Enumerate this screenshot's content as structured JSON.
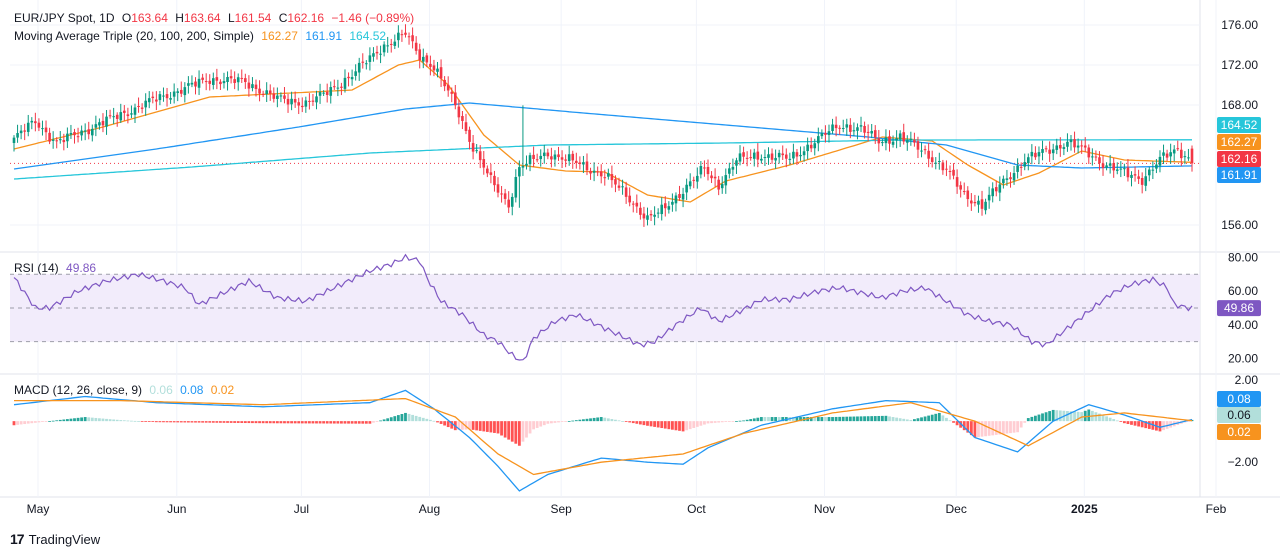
{
  "header": {
    "symbol": "EUR/JPY Spot, 1D",
    "o_label": "O",
    "o": "163.64",
    "h_label": "H",
    "h": "163.64",
    "l_label": "L",
    "l": "161.54",
    "c_label": "C",
    "c": "162.16",
    "change": "−1.46 (−0.89%)"
  },
  "ma_legend": {
    "label": "Moving Average Triple (20, 100, 200, Simple)",
    "ma20": "162.27",
    "ma100": "161.91",
    "ma200": "164.52"
  },
  "rsi_legend": {
    "label": "RSI (14)",
    "value": "49.86"
  },
  "macd_legend": {
    "label": "MACD (12, 26, close, 9)",
    "hist": "0.06",
    "macd": "0.08",
    "signal": "0.02"
  },
  "colors": {
    "up": "#089981",
    "down": "#f23645",
    "ma20": "#f7931e",
    "ma100": "#2196f3",
    "ma200": "#26c6da",
    "rsi": "#7e57c2",
    "rsi_band": "#f2ecfb",
    "macd": "#2196f3",
    "signal": "#f7931e",
    "hist_up_strong": "#26a69a",
    "hist_up_weak": "#b2dfdb",
    "hist_down_strong": "#ff5252",
    "hist_down_weak": "#ffcdd2",
    "grid": "#f0f3fa",
    "text": "#131722"
  },
  "x_axis": {
    "ticks": [
      "May",
      "Jun",
      "Jul",
      "Aug",
      "Sep",
      "Oct",
      "Nov",
      "Dec",
      "2025",
      "Feb"
    ]
  },
  "price_axis": {
    "ticks": [
      "176.00",
      "172.00",
      "168.00",
      "156.00"
    ]
  },
  "rsi_axis": {
    "ticks": [
      "80.00",
      "60.00",
      "40.00",
      "20.00"
    ]
  },
  "macd_axis": {
    "ticks": [
      "2.00",
      "−2.00"
    ]
  },
  "price_labels": [
    {
      "text": "164.52",
      "color": "#26c6da"
    },
    {
      "text": "162.27",
      "color": "#f7931e"
    },
    {
      "text": "162.16",
      "color": "#f23645"
    },
    {
      "text": "161.91",
      "color": "#2196f3"
    }
  ],
  "rsi_label": {
    "text": "49.86",
    "color": "#7e57c2"
  },
  "macd_labels": [
    {
      "text": "0.08",
      "color": "#2196f3"
    },
    {
      "text": "0.06",
      "color": "#b2dfdb"
    },
    {
      "text": "0.02",
      "color": "#f7931e"
    }
  ],
  "brand": {
    "name": "TradingView",
    "logo": "17"
  },
  "chart_data": [
    {
      "type": "candlestick",
      "title": "EUR/JPY Spot, 1D",
      "ylim": [
        153.5,
        177.5
      ],
      "x_ticks": [
        "May",
        "Jun",
        "Jul",
        "Aug",
        "Sep",
        "Oct",
        "Nov",
        "Dec",
        "2025",
        "Feb"
      ],
      "last_close": 162.16,
      "close_path": [
        [
          0,
          164.6
        ],
        [
          6,
          166.4
        ],
        [
          12,
          164.2
        ],
        [
          22,
          165.8
        ],
        [
          40,
          168.6
        ],
        [
          55,
          170.6
        ],
        [
          65,
          170.3
        ],
        [
          74,
          168.6
        ],
        [
          82,
          168.2
        ],
        [
          86,
          168.8
        ],
        [
          95,
          171.0
        ],
        [
          103,
          173.7
        ],
        [
          110,
          175.1
        ],
        [
          114,
          173.0
        ],
        [
          118,
          171.8
        ],
        [
          124,
          168.0
        ],
        [
          129,
          163.8
        ],
        [
          134,
          160.4
        ],
        [
          139,
          158.1
        ],
        [
          142,
          161.8
        ],
        [
          150,
          163.2
        ],
        [
          158,
          162.2
        ],
        [
          166,
          161.0
        ],
        [
          172,
          159.0
        ],
        [
          178,
          156.6
        ],
        [
          182,
          157.4
        ],
        [
          188,
          159.5
        ],
        [
          194,
          161.6
        ],
        [
          198,
          160.0
        ],
        [
          203,
          162.5
        ],
        [
          210,
          163.0
        ],
        [
          218,
          162.6
        ],
        [
          226,
          164.6
        ],
        [
          232,
          166.0
        ],
        [
          238,
          165.6
        ],
        [
          243,
          164.4
        ],
        [
          249,
          164.8
        ],
        [
          256,
          163.3
        ],
        [
          262,
          161.5
        ],
        [
          267,
          159.0
        ],
        [
          272,
          158.0
        ],
        [
          278,
          160.3
        ],
        [
          284,
          162.5
        ],
        [
          290,
          163.4
        ],
        [
          296,
          164.3
        ],
        [
          300,
          163.6
        ],
        [
          306,
          162.2
        ],
        [
          311,
          161.3
        ],
        [
          317,
          160.6
        ],
        [
          322,
          162.5
        ],
        [
          327,
          163.6
        ],
        [
          331,
          162.4
        ]
      ],
      "ma_series": [
        {
          "name": "MA 20",
          "path": [
            [
              0,
              163.6
            ],
            [
              25,
              165.8
            ],
            [
              55,
              168.8
            ],
            [
              95,
              169.5
            ],
            [
              108,
              172.0
            ],
            [
              114,
              172.5
            ],
            [
              122,
              170.0
            ],
            [
              132,
              165.0
            ],
            [
              142,
              162.0
            ],
            [
              155,
              161.4
            ],
            [
              166,
              161.3
            ],
            [
              178,
              159.0
            ],
            [
              190,
              158.3
            ],
            [
              200,
              160.4
            ],
            [
              218,
              162.0
            ],
            [
              232,
              163.5
            ],
            [
              244,
              164.8
            ],
            [
              258,
              164.4
            ],
            [
              268,
              162.0
            ],
            [
              278,
              160.0
            ],
            [
              288,
              161.2
            ],
            [
              300,
              163.4
            ],
            [
              312,
              162.5
            ],
            [
              331,
              162.27
            ]
          ]
        },
        {
          "name": "MA 100",
          "path": [
            [
              0,
              161.6
            ],
            [
              40,
              163.6
            ],
            [
              80,
              165.8
            ],
            [
              110,
              167.6
            ],
            [
              128,
              168.2
            ],
            [
              160,
              167.2
            ],
            [
              200,
              166.0
            ],
            [
              240,
              164.8
            ],
            [
              262,
              164.0
            ],
            [
              282,
              162.0
            ],
            [
              300,
              161.7
            ],
            [
              331,
              161.91
            ]
          ]
        },
        {
          "name": "MA 200",
          "path": [
            [
              0,
              160.6
            ],
            [
              50,
              161.8
            ],
            [
              100,
              163.2
            ],
            [
              150,
              164.0
            ],
            [
              200,
              164.2
            ],
            [
              250,
              164.5
            ],
            [
              331,
              164.52
            ]
          ]
        }
      ]
    },
    {
      "type": "line",
      "title": "RSI (14)",
      "ylim": [
        12,
        82
      ],
      "bands": [
        30,
        50,
        70
      ],
      "last": 49.86,
      "path": [
        [
          0,
          68
        ],
        [
          6,
          50
        ],
        [
          10,
          50
        ],
        [
          18,
          60
        ],
        [
          26,
          66
        ],
        [
          35,
          70
        ],
        [
          42,
          66
        ],
        [
          48,
          62
        ],
        [
          52,
          52
        ],
        [
          58,
          58
        ],
        [
          66,
          66
        ],
        [
          74,
          56
        ],
        [
          82,
          54
        ],
        [
          92,
          64
        ],
        [
          100,
          72
        ],
        [
          106,
          76
        ],
        [
          110,
          80
        ],
        [
          114,
          78
        ],
        [
          116,
          68
        ],
        [
          120,
          54
        ],
        [
          126,
          46
        ],
        [
          132,
          34
        ],
        [
          136,
          30
        ],
        [
          140,
          22
        ],
        [
          143,
          18
        ],
        [
          146,
          32
        ],
        [
          152,
          42
        ],
        [
          158,
          46
        ],
        [
          164,
          40
        ],
        [
          170,
          34
        ],
        [
          176,
          28
        ],
        [
          180,
          30
        ],
        [
          186,
          40
        ],
        [
          193,
          50
        ],
        [
          198,
          42
        ],
        [
          204,
          48
        ],
        [
          210,
          55
        ],
        [
          218,
          55
        ],
        [
          226,
          60
        ],
        [
          232,
          62
        ],
        [
          238,
          59
        ],
        [
          244,
          56
        ],
        [
          250,
          60
        ],
        [
          256,
          62
        ],
        [
          262,
          54
        ],
        [
          268,
          46
        ],
        [
          274,
          42
        ],
        [
          280,
          40
        ],
        [
          286,
          30
        ],
        [
          290,
          28
        ],
        [
          296,
          38
        ],
        [
          302,
          48
        ],
        [
          308,
          58
        ],
        [
          314,
          64
        ],
        [
          320,
          67
        ],
        [
          324,
          62
        ],
        [
          326,
          52
        ],
        [
          330,
          50
        ],
        [
          331,
          49.86
        ]
      ]
    },
    {
      "type": "line",
      "title": "MACD (12, 26, close, 9)",
      "ylim": [
        -3.6,
        2.2
      ],
      "series": [
        {
          "name": "MACD",
          "path": [
            [
              0,
              0.8
            ],
            [
              20,
              1.2
            ],
            [
              40,
              0.9
            ],
            [
              70,
              0.7
            ],
            [
              100,
              0.9
            ],
            [
              110,
              1.5
            ],
            [
              118,
              0.6
            ],
            [
              128,
              -0.8
            ],
            [
              136,
              -2.2
            ],
            [
              142,
              -3.4
            ],
            [
              150,
              -2.6
            ],
            [
              165,
              -1.8
            ],
            [
              178,
              -2.0
            ],
            [
              188,
              -2.1
            ],
            [
              195,
              -1.3
            ],
            [
              210,
              -0.2
            ],
            [
              230,
              0.6
            ],
            [
              245,
              1.0
            ],
            [
              260,
              0.9
            ],
            [
              270,
              -0.8
            ],
            [
              282,
              -1.5
            ],
            [
              292,
              0.0
            ],
            [
              302,
              0.8
            ],
            [
              312,
              0.3
            ],
            [
              322,
              -0.3
            ],
            [
              331,
              0.08
            ]
          ]
        },
        {
          "name": "Signal",
          "path": [
            [
              0,
              1.0
            ],
            [
              30,
              1.0
            ],
            [
              70,
              0.8
            ],
            [
              110,
              1.1
            ],
            [
              124,
              0.2
            ],
            [
              136,
              -1.6
            ],
            [
              146,
              -2.6
            ],
            [
              165,
              -2.0
            ],
            [
              188,
              -1.6
            ],
            [
              205,
              -0.6
            ],
            [
              230,
              0.4
            ],
            [
              252,
              0.9
            ],
            [
              270,
              0.0
            ],
            [
              285,
              -1.2
            ],
            [
              300,
              0.2
            ],
            [
              312,
              0.4
            ],
            [
              331,
              0.02
            ]
          ]
        }
      ],
      "histogram_last": 0.06
    }
  ]
}
